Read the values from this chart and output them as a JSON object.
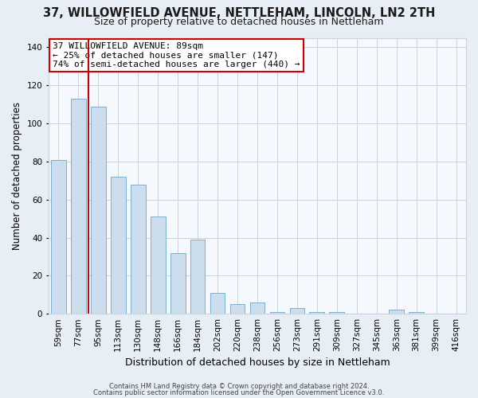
{
  "title": "37, WILLOWFIELD AVENUE, NETTLEHAM, LINCOLN, LN2 2TH",
  "subtitle": "Size of property relative to detached houses in Nettleham",
  "xlabel": "Distribution of detached houses by size in Nettleham",
  "ylabel": "Number of detached properties",
  "bar_labels": [
    "59sqm",
    "77sqm",
    "95sqm",
    "113sqm",
    "130sqm",
    "148sqm",
    "166sqm",
    "184sqm",
    "202sqm",
    "220sqm",
    "238sqm",
    "256sqm",
    "273sqm",
    "291sqm",
    "309sqm",
    "327sqm",
    "345sqm",
    "363sqm",
    "381sqm",
    "399sqm",
    "416sqm"
  ],
  "bar_values": [
    81,
    113,
    109,
    72,
    68,
    51,
    32,
    39,
    11,
    5,
    6,
    1,
    3,
    1,
    1,
    0,
    0,
    2,
    1,
    0,
    0
  ],
  "bar_color": "#ccdded",
  "bar_edgecolor": "#7ab0cc",
  "background_color": "#e8eef5",
  "plot_bg_color": "#f5f8fc",
  "grid_color": "#c8d4e0",
  "annotation_lines": [
    "37 WILLOWFIELD AVENUE: 89sqm",
    "← 25% of detached houses are smaller (147)",
    "74% of semi-detached houses are larger (440) →"
  ],
  "annotation_box_edgecolor": "#cc0000",
  "annotation_text_color": "#000000",
  "vline_color": "#cc0000",
  "ylim": [
    0,
    145
  ],
  "yticks": [
    0,
    20,
    40,
    60,
    80,
    100,
    120,
    140
  ],
  "footer1": "Contains HM Land Registry data © Crown copyright and database right 2024.",
  "footer2": "Contains public sector information licensed under the Open Government Licence v3.0.",
  "title_fontsize": 10.5,
  "subtitle_fontsize": 9,
  "xlabel_fontsize": 9,
  "ylabel_fontsize": 8.5,
  "tick_fontsize": 7.5,
  "ann_fontsize": 8,
  "footer_fontsize": 6
}
